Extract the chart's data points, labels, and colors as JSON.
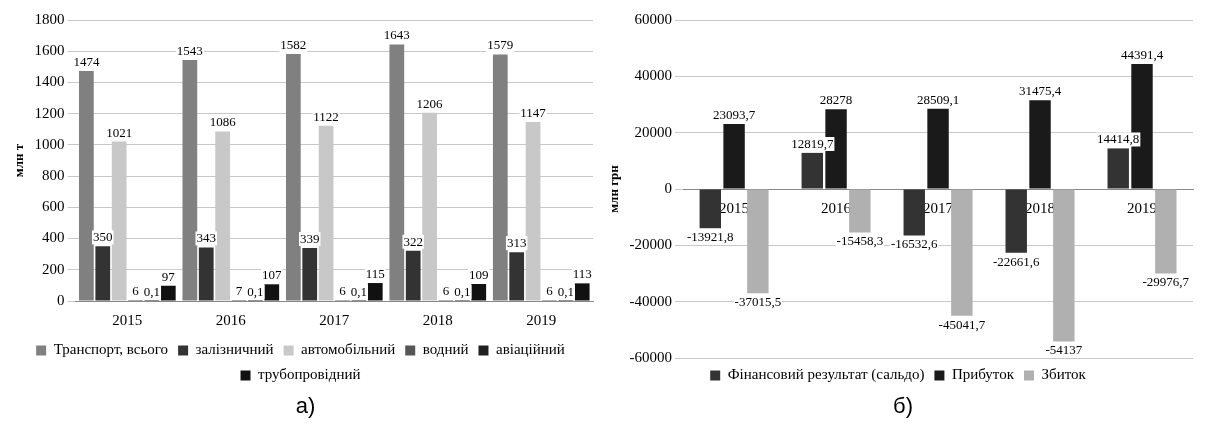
{
  "chart_data": [
    {
      "type": "bar",
      "categories": [
        "2015",
        "2016",
        "2017",
        "2018",
        "2019"
      ],
      "ylabel": "млн т",
      "ylim": [
        0,
        1800
      ],
      "yticks": [
        0,
        200,
        400,
        600,
        800,
        1000,
        1200,
        1400,
        1600,
        1800
      ],
      "grid": "y",
      "legend": "bottom",
      "annotations": [
        "а)"
      ],
      "series": [
        {
          "name": "Транспорт, всього",
          "color": "#808080",
          "values": [
            1474,
            1543,
            1582,
            1643,
            1579
          ],
          "value_labels": [
            "1474",
            "1543",
            "1582",
            "1643",
            "1579"
          ]
        },
        {
          "name": "залізничний",
          "color": "#333333",
          "values": [
            350,
            343,
            339,
            322,
            313
          ],
          "value_labels": [
            "350",
            "343",
            "339",
            "322",
            "313"
          ]
        },
        {
          "name": "автомобільний",
          "color": "#c8c8c8",
          "values": [
            1021,
            1086,
            1122,
            1206,
            1147
          ],
          "value_labels": [
            "1021",
            "1086",
            "1122",
            "1206",
            "1147"
          ]
        },
        {
          "name": "водний",
          "color": "#555555",
          "values": [
            6,
            7,
            6,
            6,
            6
          ],
          "value_labels": [
            "6",
            "7",
            "6",
            "6",
            "6"
          ]
        },
        {
          "name": "авіаційний",
          "color": "#202020",
          "values": [
            0.1,
            0.1,
            0.1,
            0.1,
            0.1
          ],
          "value_labels": [
            "0,1",
            "0,1",
            "0,1",
            "0,1",
            "0,1"
          ]
        },
        {
          "name": "трубопровідний",
          "color": "#111111",
          "values": [
            97,
            107,
            115,
            109,
            113
          ],
          "value_labels": [
            "97",
            "107",
            "115",
            "109",
            "113"
          ]
        }
      ]
    },
    {
      "type": "bar",
      "categories": [
        "2015",
        "2016",
        "2017",
        "2018",
        "2019"
      ],
      "ylabel": "млн грн",
      "ylim": [
        -60000,
        60000
      ],
      "yticks": [
        -60000,
        -40000,
        -20000,
        0,
        20000,
        40000,
        60000
      ],
      "grid": "y",
      "legend": "bottom",
      "annotations": [
        "б)"
      ],
      "series": [
        {
          "name": "Фінансовий результат (сальдо)",
          "color": "#333333",
          "values": [
            -13921.8,
            12819.7,
            -16532.6,
            -22661.6,
            14414.8
          ],
          "value_labels": [
            "-13921,8",
            "12819,7",
            "-16532,6",
            "-22661,6",
            "14414,8"
          ]
        },
        {
          "name": "Прибуток",
          "color": "#1a1a1a",
          "values": [
            23093.7,
            28278,
            28509.1,
            31475.4,
            44391.4
          ],
          "value_labels": [
            "23093,7",
            "28278",
            "28509,1",
            "31475,4",
            "44391,4"
          ]
        },
        {
          "name": "Збиток",
          "color": "#b0b0b0",
          "values": [
            -37015.5,
            -15458.3,
            -45041.7,
            -54137,
            -29976.7
          ],
          "value_labels": [
            "-37015,5",
            "-15458,3",
            "-45041,7",
            "-54137",
            "-29976,7"
          ]
        }
      ]
    }
  ]
}
